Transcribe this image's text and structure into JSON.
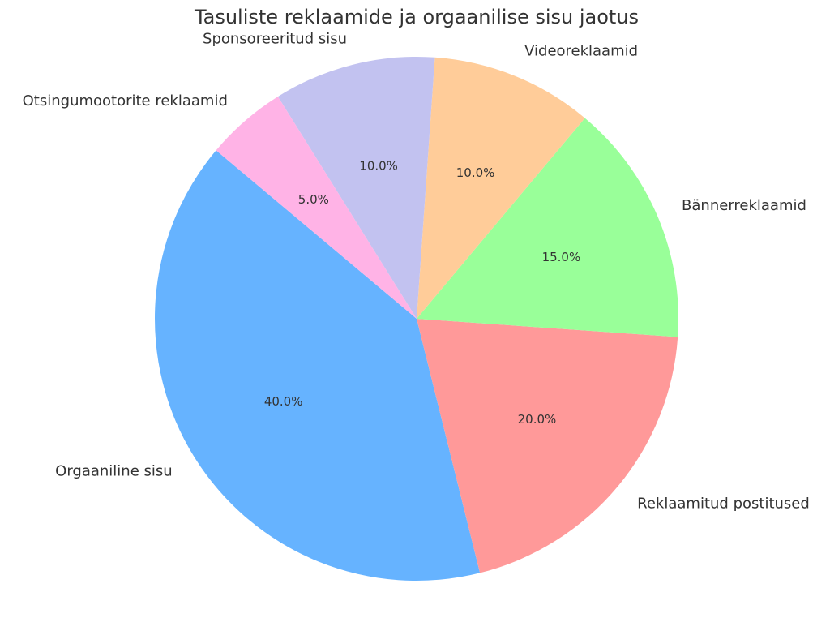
{
  "chart_data": {
    "type": "pie",
    "title": "Tasuliste reklaamide ja orgaanilise sisu jaotus",
    "categories": [
      "Orgaaniline sisu",
      "Reklaamitud postitused",
      "Bännerreklaamid",
      "Videoreklaamid",
      "Sponsoreeritud sisu",
      "Otsingumootorite reklaamid"
    ],
    "values": [
      40,
      20,
      15,
      10,
      10,
      5
    ],
    "value_labels": [
      "40.0%",
      "20.0%",
      "15.0%",
      "10.0%",
      "10.0%",
      "5.0%"
    ],
    "colors": [
      "#66b3ff",
      "#ff9999",
      "#99ff99",
      "#ffcc99",
      "#c2c2f0",
      "#ffb3e6"
    ]
  }
}
